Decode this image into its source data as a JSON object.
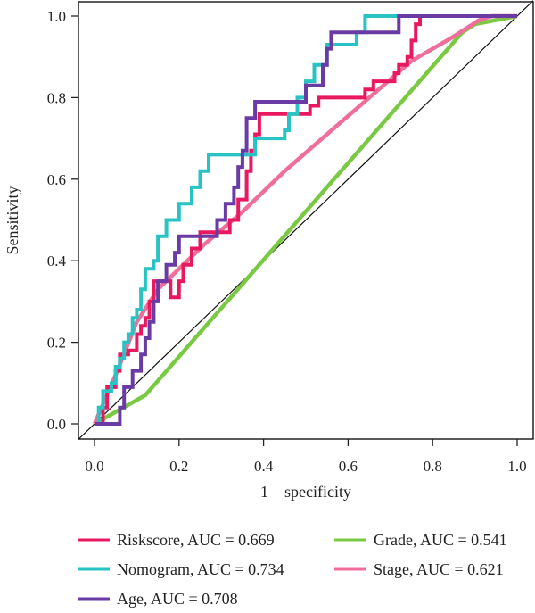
{
  "chart_data": {
    "type": "line",
    "title": "",
    "xlabel": "1 – specificity",
    "ylabel": "Sensitivity",
    "xlim": [
      -0.04,
      1.04
    ],
    "ylim": [
      -0.04,
      1.04
    ],
    "x_ticks": [
      "0.0",
      "0.2",
      "0.4",
      "0.6",
      "0.8",
      "1.0"
    ],
    "y_ticks": [
      "0.0",
      "0.2",
      "0.4",
      "0.6",
      "0.8",
      "1.0"
    ],
    "grid": false,
    "legend_position": "bottom",
    "reference_line": [
      [
        0,
        0
      ],
      [
        1,
        1
      ]
    ],
    "series": [
      {
        "name": "Riskscore, AUC = 0.669",
        "color": "#e8195f",
        "step": true,
        "points": [
          [
            0,
            0
          ],
          [
            0.02,
            0.04
          ],
          [
            0.03,
            0.09
          ],
          [
            0.05,
            0.13
          ],
          [
            0.06,
            0.17
          ],
          [
            0.08,
            0.18
          ],
          [
            0.1,
            0.22
          ],
          [
            0.11,
            0.24
          ],
          [
            0.12,
            0.26
          ],
          [
            0.13,
            0.3
          ],
          [
            0.14,
            0.35
          ],
          [
            0.17,
            0.35
          ],
          [
            0.18,
            0.31
          ],
          [
            0.2,
            0.35
          ],
          [
            0.21,
            0.39
          ],
          [
            0.23,
            0.43
          ],
          [
            0.25,
            0.47
          ],
          [
            0.3,
            0.47
          ],
          [
            0.32,
            0.5
          ],
          [
            0.34,
            0.55
          ],
          [
            0.36,
            0.62
          ],
          [
            0.37,
            0.67
          ],
          [
            0.38,
            0.71
          ],
          [
            0.39,
            0.76
          ],
          [
            0.49,
            0.76
          ],
          [
            0.51,
            0.78
          ],
          [
            0.53,
            0.8
          ],
          [
            0.63,
            0.8
          ],
          [
            0.64,
            0.82
          ],
          [
            0.66,
            0.84
          ],
          [
            0.7,
            0.84
          ],
          [
            0.71,
            0.86
          ],
          [
            0.72,
            0.88
          ],
          [
            0.74,
            0.9
          ],
          [
            0.75,
            0.94
          ],
          [
            0.76,
            0.98
          ],
          [
            0.77,
            1.0
          ],
          [
            1.0,
            1.0
          ]
        ]
      },
      {
        "name": "Nomogram, AUC = 0.734",
        "color": "#29c3c3",
        "step": true,
        "points": [
          [
            0,
            0
          ],
          [
            0.01,
            0.04
          ],
          [
            0.02,
            0.08
          ],
          [
            0.04,
            0.1
          ],
          [
            0.05,
            0.14
          ],
          [
            0.06,
            0.16
          ],
          [
            0.07,
            0.2
          ],
          [
            0.08,
            0.22
          ],
          [
            0.09,
            0.26
          ],
          [
            0.1,
            0.28
          ],
          [
            0.11,
            0.33
          ],
          [
            0.12,
            0.38
          ],
          [
            0.14,
            0.4
          ],
          [
            0.15,
            0.46
          ],
          [
            0.17,
            0.5
          ],
          [
            0.2,
            0.54
          ],
          [
            0.23,
            0.58
          ],
          [
            0.25,
            0.62
          ],
          [
            0.27,
            0.66
          ],
          [
            0.35,
            0.66
          ],
          [
            0.37,
            0.66
          ],
          [
            0.38,
            0.7
          ],
          [
            0.39,
            0.7
          ],
          [
            0.44,
            0.7
          ],
          [
            0.45,
            0.72
          ],
          [
            0.46,
            0.76
          ],
          [
            0.48,
            0.8
          ],
          [
            0.5,
            0.84
          ],
          [
            0.52,
            0.88
          ],
          [
            0.55,
            0.93
          ],
          [
            0.6,
            0.93
          ],
          [
            0.62,
            0.96
          ],
          [
            0.64,
            1.0
          ],
          [
            1.0,
            1.0
          ]
        ]
      },
      {
        "name": "Age, AUC = 0.708",
        "color": "#6a3ba4",
        "step": true,
        "points": [
          [
            0,
            0
          ],
          [
            0.05,
            0
          ],
          [
            0.06,
            0.04
          ],
          [
            0.07,
            0.09
          ],
          [
            0.09,
            0.13
          ],
          [
            0.11,
            0.17
          ],
          [
            0.12,
            0.21
          ],
          [
            0.13,
            0.25
          ],
          [
            0.14,
            0.3
          ],
          [
            0.15,
            0.35
          ],
          [
            0.17,
            0.39
          ],
          [
            0.19,
            0.42
          ],
          [
            0.2,
            0.46
          ],
          [
            0.23,
            0.46
          ],
          [
            0.29,
            0.5
          ],
          [
            0.31,
            0.54
          ],
          [
            0.33,
            0.58
          ],
          [
            0.34,
            0.63
          ],
          [
            0.35,
            0.67
          ],
          [
            0.36,
            0.75
          ],
          [
            0.38,
            0.79
          ],
          [
            0.48,
            0.79
          ],
          [
            0.5,
            0.83
          ],
          [
            0.53,
            0.83
          ],
          [
            0.54,
            0.88
          ],
          [
            0.55,
            0.92
          ],
          [
            0.56,
            0.96
          ],
          [
            0.71,
            0.96
          ],
          [
            0.72,
            1.0
          ],
          [
            0.8,
            1.0
          ],
          [
            1.0,
            1.0
          ]
        ]
      },
      {
        "name": "Grade, AUC = 0.541",
        "color": "#7ac943",
        "step": false,
        "points": [
          [
            0,
            0
          ],
          [
            0.12,
            0.07
          ],
          [
            0.87,
            0.96
          ],
          [
            0.9,
            0.98
          ],
          [
            1.0,
            1.0
          ]
        ]
      },
      {
        "name": "Stage, AUC = 0.621",
        "color": "#ef6f9a",
        "step": false,
        "points": [
          [
            0,
            0
          ],
          [
            0.05,
            0.12
          ],
          [
            0.1,
            0.25
          ],
          [
            0.15,
            0.33
          ],
          [
            0.2,
            0.38
          ],
          [
            0.26,
            0.44
          ],
          [
            0.35,
            0.52
          ],
          [
            0.45,
            0.62
          ],
          [
            0.55,
            0.71
          ],
          [
            0.65,
            0.8
          ],
          [
            0.75,
            0.89
          ],
          [
            0.85,
            0.95
          ],
          [
            0.91,
            0.99
          ],
          [
            0.94,
            1.0
          ],
          [
            1.0,
            1.0
          ]
        ]
      }
    ]
  }
}
